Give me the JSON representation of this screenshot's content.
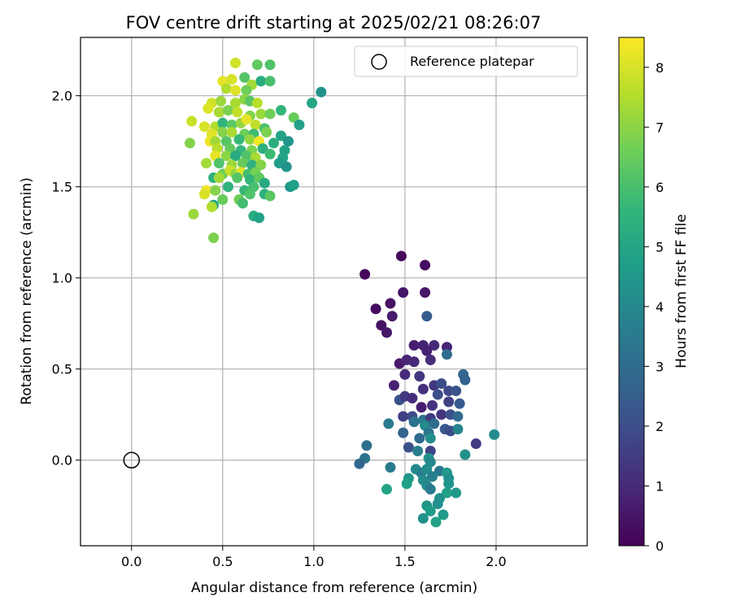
{
  "chart_data": {
    "type": "scatter",
    "title": "FOV centre drift starting at 2025/02/21 08:26:07",
    "xlabel": "Angular distance from reference (arcmin)",
    "ylabel": "Rotation from reference (arcmin)",
    "xlim": [
      -0.28,
      2.5
    ],
    "ylim": [
      -0.47,
      2.32
    ],
    "x_ticks": [
      0.0,
      0.5,
      1.0,
      1.5,
      2.0
    ],
    "y_ticks": [
      0.0,
      0.5,
      1.0,
      1.5,
      2.0
    ],
    "grid": true,
    "legend": {
      "placement": "top-right",
      "entries": [
        "Reference platepar"
      ]
    },
    "reference_point": {
      "x": 0.0,
      "y": 0.0
    },
    "colorbar": {
      "label": "Hours from first FF file",
      "range": [
        0,
        8.5
      ],
      "ticks": [
        0,
        1,
        2,
        3,
        4,
        5,
        6,
        7,
        8
      ],
      "colormap": "viridis"
    },
    "points": [
      {
        "x": 1.28,
        "y": 1.02,
        "c": 0.2
      },
      {
        "x": 1.48,
        "y": 1.12,
        "c": 0.2
      },
      {
        "x": 1.61,
        "y": 1.07,
        "c": 0.3
      },
      {
        "x": 1.34,
        "y": 0.83,
        "c": 0.3
      },
      {
        "x": 1.42,
        "y": 0.86,
        "c": 0.4
      },
      {
        "x": 1.49,
        "y": 0.92,
        "c": 0.5
      },
      {
        "x": 1.61,
        "y": 0.92,
        "c": 0.5
      },
      {
        "x": 1.37,
        "y": 0.74,
        "c": 0.4
      },
      {
        "x": 1.43,
        "y": 0.79,
        "c": 0.6
      },
      {
        "x": 1.4,
        "y": 0.7,
        "c": 0.5
      },
      {
        "x": 1.55,
        "y": 0.63,
        "c": 0.7
      },
      {
        "x": 1.6,
        "y": 0.63,
        "c": 0.8
      },
      {
        "x": 1.66,
        "y": 0.63,
        "c": 1.0
      },
      {
        "x": 1.73,
        "y": 0.62,
        "c": 0.9
      },
      {
        "x": 1.62,
        "y": 0.6,
        "c": 0.8
      },
      {
        "x": 1.47,
        "y": 0.53,
        "c": 0.6
      },
      {
        "x": 1.51,
        "y": 0.55,
        "c": 0.9
      },
      {
        "x": 1.55,
        "y": 0.54,
        "c": 1.0
      },
      {
        "x": 1.64,
        "y": 0.55,
        "c": 1.1
      },
      {
        "x": 1.5,
        "y": 0.47,
        "c": 1.0
      },
      {
        "x": 1.58,
        "y": 0.46,
        "c": 1.3
      },
      {
        "x": 1.44,
        "y": 0.41,
        "c": 0.8
      },
      {
        "x": 1.6,
        "y": 0.39,
        "c": 1.2
      },
      {
        "x": 1.66,
        "y": 0.41,
        "c": 1.4
      },
      {
        "x": 1.7,
        "y": 0.42,
        "c": 2.0
      },
      {
        "x": 1.73,
        "y": 0.58,
        "c": 3.0
      },
      {
        "x": 1.62,
        "y": 0.79,
        "c": 2.5
      },
      {
        "x": 1.47,
        "y": 0.33,
        "c": 2.2
      },
      {
        "x": 1.5,
        "y": 0.35,
        "c": 1.4
      },
      {
        "x": 1.54,
        "y": 0.34,
        "c": 1.1
      },
      {
        "x": 1.68,
        "y": 0.36,
        "c": 2.0
      },
      {
        "x": 1.74,
        "y": 0.38,
        "c": 1.8
      },
      {
        "x": 1.78,
        "y": 0.38,
        "c": 2.2
      },
      {
        "x": 1.59,
        "y": 0.29,
        "c": 0.7
      },
      {
        "x": 1.65,
        "y": 0.3,
        "c": 1.2
      },
      {
        "x": 1.74,
        "y": 0.32,
        "c": 1.6
      },
      {
        "x": 1.8,
        "y": 0.31,
        "c": 2.4
      },
      {
        "x": 1.82,
        "y": 0.47,
        "c": 2.8
      },
      {
        "x": 1.83,
        "y": 0.44,
        "c": 2.6
      },
      {
        "x": 1.49,
        "y": 0.24,
        "c": 1.6
      },
      {
        "x": 1.54,
        "y": 0.24,
        "c": 1.9
      },
      {
        "x": 1.6,
        "y": 0.22,
        "c": 3.4
      },
      {
        "x": 1.64,
        "y": 0.23,
        "c": 1.5
      },
      {
        "x": 1.7,
        "y": 0.25,
        "c": 1.3
      },
      {
        "x": 1.75,
        "y": 0.25,
        "c": 2.1
      },
      {
        "x": 1.79,
        "y": 0.24,
        "c": 2.9
      },
      {
        "x": 1.41,
        "y": 0.2,
        "c": 3.5
      },
      {
        "x": 1.55,
        "y": 0.21,
        "c": 3.2
      },
      {
        "x": 1.61,
        "y": 0.19,
        "c": 4.0
      },
      {
        "x": 1.66,
        "y": 0.2,
        "c": 3.0
      },
      {
        "x": 1.72,
        "y": 0.17,
        "c": 2.3
      },
      {
        "x": 1.75,
        "y": 0.16,
        "c": 2.0
      },
      {
        "x": 1.79,
        "y": 0.17,
        "c": 3.8
      },
      {
        "x": 1.49,
        "y": 0.15,
        "c": 2.7
      },
      {
        "x": 1.58,
        "y": 0.12,
        "c": 2.9
      },
      {
        "x": 1.63,
        "y": 0.15,
        "c": 3.3
      },
      {
        "x": 1.64,
        "y": 0.12,
        "c": 4.2
      },
      {
        "x": 1.89,
        "y": 0.09,
        "c": 1.5
      },
      {
        "x": 1.99,
        "y": 0.14,
        "c": 4.1
      },
      {
        "x": 1.52,
        "y": 0.07,
        "c": 2.1
      },
      {
        "x": 1.57,
        "y": 0.05,
        "c": 3.6
      },
      {
        "x": 1.64,
        "y": 0.05,
        "c": 1.7
      },
      {
        "x": 1.83,
        "y": 0.03,
        "c": 4.3
      },
      {
        "x": 1.29,
        "y": 0.08,
        "c": 3.1
      },
      {
        "x": 1.28,
        "y": 0.01,
        "c": 3.3
      },
      {
        "x": 1.25,
        "y": -0.02,
        "c": 2.8
      },
      {
        "x": 1.63,
        "y": 0.01,
        "c": 4.4
      },
      {
        "x": 1.64,
        "y": -0.01,
        "c": 3.9
      },
      {
        "x": 1.42,
        "y": -0.04,
        "c": 3.5
      },
      {
        "x": 1.56,
        "y": -0.05,
        "c": 4.0
      },
      {
        "x": 1.59,
        "y": -0.07,
        "c": 3.6
      },
      {
        "x": 1.62,
        "y": -0.05,
        "c": 4.1
      },
      {
        "x": 1.69,
        "y": -0.06,
        "c": 3.4
      },
      {
        "x": 1.73,
        "y": -0.07,
        "c": 4.6
      },
      {
        "x": 1.52,
        "y": -0.1,
        "c": 4.5
      },
      {
        "x": 1.6,
        "y": -0.11,
        "c": 4.1
      },
      {
        "x": 1.65,
        "y": -0.09,
        "c": 3.7
      },
      {
        "x": 1.74,
        "y": -0.1,
        "c": 4.2
      },
      {
        "x": 1.51,
        "y": -0.13,
        "c": 4.8
      },
      {
        "x": 1.62,
        "y": -0.14,
        "c": 4.0
      },
      {
        "x": 1.64,
        "y": -0.16,
        "c": 3.5
      },
      {
        "x": 1.74,
        "y": -0.13,
        "c": 4.4
      },
      {
        "x": 1.4,
        "y": -0.16,
        "c": 4.9
      },
      {
        "x": 1.73,
        "y": -0.18,
        "c": 4.8
      },
      {
        "x": 1.78,
        "y": -0.18,
        "c": 4.5
      },
      {
        "x": 1.69,
        "y": -0.21,
        "c": 4.3
      },
      {
        "x": 1.62,
        "y": -0.25,
        "c": 4.5
      },
      {
        "x": 1.68,
        "y": -0.24,
        "c": 4.2
      },
      {
        "x": 1.64,
        "y": -0.28,
        "c": 4.7
      },
      {
        "x": 1.6,
        "y": -0.32,
        "c": 4.3
      },
      {
        "x": 1.71,
        "y": -0.3,
        "c": 4.6
      },
      {
        "x": 1.67,
        "y": -0.34,
        "c": 4.9
      },
      {
        "x": 0.57,
        "y": 2.18,
        "c": 7.9
      },
      {
        "x": 0.69,
        "y": 2.17,
        "c": 6.4
      },
      {
        "x": 0.76,
        "y": 2.17,
        "c": 6.1
      },
      {
        "x": 0.5,
        "y": 2.08,
        "c": 8.2
      },
      {
        "x": 0.55,
        "y": 2.09,
        "c": 8.0
      },
      {
        "x": 0.62,
        "y": 2.1,
        "c": 6.2
      },
      {
        "x": 0.66,
        "y": 2.06,
        "c": 7.3
      },
      {
        "x": 0.71,
        "y": 2.08,
        "c": 5.3
      },
      {
        "x": 0.76,
        "y": 2.08,
        "c": 6.0
      },
      {
        "x": 1.04,
        "y": 2.02,
        "c": 4.3
      },
      {
        "x": 0.99,
        "y": 1.96,
        "c": 5.0
      },
      {
        "x": 0.52,
        "y": 2.04,
        "c": 7.5
      },
      {
        "x": 0.57,
        "y": 2.03,
        "c": 8.1
      },
      {
        "x": 0.63,
        "y": 2.03,
        "c": 6.6
      },
      {
        "x": 0.44,
        "y": 1.96,
        "c": 7.9
      },
      {
        "x": 0.49,
        "y": 1.97,
        "c": 7.2
      },
      {
        "x": 0.57,
        "y": 1.96,
        "c": 7.4
      },
      {
        "x": 0.62,
        "y": 1.98,
        "c": 7.0
      },
      {
        "x": 0.65,
        "y": 1.97,
        "c": 6.3
      },
      {
        "x": 0.69,
        "y": 1.96,
        "c": 7.6
      },
      {
        "x": 0.42,
        "y": 1.93,
        "c": 8.1
      },
      {
        "x": 0.48,
        "y": 1.91,
        "c": 7.4
      },
      {
        "x": 0.53,
        "y": 1.92,
        "c": 6.8
      },
      {
        "x": 0.58,
        "y": 1.91,
        "c": 7.7
      },
      {
        "x": 0.65,
        "y": 1.89,
        "c": 6.9
      },
      {
        "x": 0.71,
        "y": 1.9,
        "c": 7.2
      },
      {
        "x": 0.76,
        "y": 1.9,
        "c": 6.6
      },
      {
        "x": 0.82,
        "y": 1.92,
        "c": 5.6
      },
      {
        "x": 0.89,
        "y": 1.88,
        "c": 6.5
      },
      {
        "x": 0.92,
        "y": 1.84,
        "c": 4.8
      },
      {
        "x": 0.33,
        "y": 1.86,
        "c": 7.8
      },
      {
        "x": 0.4,
        "y": 1.83,
        "c": 8.0
      },
      {
        "x": 0.46,
        "y": 1.83,
        "c": 7.5
      },
      {
        "x": 0.5,
        "y": 1.85,
        "c": 5.5
      },
      {
        "x": 0.55,
        "y": 1.84,
        "c": 6.3
      },
      {
        "x": 0.6,
        "y": 1.85,
        "c": 7.1
      },
      {
        "x": 0.63,
        "y": 1.87,
        "c": 8.2
      },
      {
        "x": 0.68,
        "y": 1.84,
        "c": 7.7
      },
      {
        "x": 0.73,
        "y": 1.82,
        "c": 6.0
      },
      {
        "x": 0.44,
        "y": 1.79,
        "c": 8.1
      },
      {
        "x": 0.5,
        "y": 1.8,
        "c": 6.9
      },
      {
        "x": 0.55,
        "y": 1.8,
        "c": 7.4
      },
      {
        "x": 0.62,
        "y": 1.79,
        "c": 6.6
      },
      {
        "x": 0.67,
        "y": 1.79,
        "c": 5.8
      },
      {
        "x": 0.74,
        "y": 1.8,
        "c": 6.8
      },
      {
        "x": 0.82,
        "y": 1.78,
        "c": 4.9
      },
      {
        "x": 0.86,
        "y": 1.75,
        "c": 4.5
      },
      {
        "x": 0.43,
        "y": 1.75,
        "c": 8.3
      },
      {
        "x": 0.46,
        "y": 1.75,
        "c": 7.3
      },
      {
        "x": 0.52,
        "y": 1.75,
        "c": 6.2
      },
      {
        "x": 0.59,
        "y": 1.76,
        "c": 5.7
      },
      {
        "x": 0.65,
        "y": 1.76,
        "c": 7.1
      },
      {
        "x": 0.7,
        "y": 1.75,
        "c": 8.4
      },
      {
        "x": 0.78,
        "y": 1.74,
        "c": 5.3
      },
      {
        "x": 0.32,
        "y": 1.74,
        "c": 6.9
      },
      {
        "x": 0.47,
        "y": 1.71,
        "c": 7.6
      },
      {
        "x": 0.54,
        "y": 1.71,
        "c": 6.4
      },
      {
        "x": 0.6,
        "y": 1.7,
        "c": 5.6
      },
      {
        "x": 0.66,
        "y": 1.7,
        "c": 6.8
      },
      {
        "x": 0.72,
        "y": 1.71,
        "c": 5.4
      },
      {
        "x": 0.84,
        "y": 1.7,
        "c": 4.9
      },
      {
        "x": 0.46,
        "y": 1.67,
        "c": 8.2
      },
      {
        "x": 0.52,
        "y": 1.67,
        "c": 7.0
      },
      {
        "x": 0.57,
        "y": 1.67,
        "c": 5.2
      },
      {
        "x": 0.63,
        "y": 1.67,
        "c": 6.1
      },
      {
        "x": 0.68,
        "y": 1.66,
        "c": 7.4
      },
      {
        "x": 0.76,
        "y": 1.68,
        "c": 5.8
      },
      {
        "x": 0.83,
        "y": 1.66,
        "c": 5.0
      },
      {
        "x": 0.41,
        "y": 1.63,
        "c": 7.3
      },
      {
        "x": 0.48,
        "y": 1.63,
        "c": 6.1
      },
      {
        "x": 0.55,
        "y": 1.62,
        "c": 7.2
      },
      {
        "x": 0.61,
        "y": 1.63,
        "c": 6.5
      },
      {
        "x": 0.66,
        "y": 1.62,
        "c": 5.4
      },
      {
        "x": 0.71,
        "y": 1.62,
        "c": 6.9
      },
      {
        "x": 0.81,
        "y": 1.63,
        "c": 4.7
      },
      {
        "x": 0.85,
        "y": 1.61,
        "c": 4.4
      },
      {
        "x": 0.45,
        "y": 1.55,
        "c": 5.4
      },
      {
        "x": 0.5,
        "y": 1.57,
        "c": 6.6
      },
      {
        "x": 0.54,
        "y": 1.59,
        "c": 7.8
      },
      {
        "x": 0.57,
        "y": 1.57,
        "c": 7.1
      },
      {
        "x": 0.6,
        "y": 1.58,
        "c": 8.1
      },
      {
        "x": 0.64,
        "y": 1.57,
        "c": 5.9
      },
      {
        "x": 0.68,
        "y": 1.58,
        "c": 6.7
      },
      {
        "x": 0.48,
        "y": 1.55,
        "c": 7.3
      },
      {
        "x": 0.58,
        "y": 1.55,
        "c": 6.2
      },
      {
        "x": 0.65,
        "y": 1.54,
        "c": 5.6
      },
      {
        "x": 0.7,
        "y": 1.55,
        "c": 6.4
      },
      {
        "x": 0.73,
        "y": 1.52,
        "c": 5.1
      },
      {
        "x": 0.67,
        "y": 1.5,
        "c": 6.0
      },
      {
        "x": 0.87,
        "y": 1.5,
        "c": 4.5
      },
      {
        "x": 0.89,
        "y": 1.51,
        "c": 4.8
      },
      {
        "x": 0.41,
        "y": 1.48,
        "c": 8.3
      },
      {
        "x": 0.4,
        "y": 1.46,
        "c": 8.0
      },
      {
        "x": 0.46,
        "y": 1.48,
        "c": 6.9
      },
      {
        "x": 0.53,
        "y": 1.5,
        "c": 5.5
      },
      {
        "x": 0.62,
        "y": 1.48,
        "c": 5.7
      },
      {
        "x": 0.65,
        "y": 1.46,
        "c": 6.1
      },
      {
        "x": 0.73,
        "y": 1.46,
        "c": 5.4
      },
      {
        "x": 0.76,
        "y": 1.45,
        "c": 6.3
      },
      {
        "x": 0.5,
        "y": 1.43,
        "c": 6.5
      },
      {
        "x": 0.59,
        "y": 1.43,
        "c": 6.6
      },
      {
        "x": 0.61,
        "y": 1.41,
        "c": 5.9
      },
      {
        "x": 0.45,
        "y": 1.4,
        "c": 5.0
      },
      {
        "x": 0.44,
        "y": 1.39,
        "c": 7.5
      },
      {
        "x": 0.34,
        "y": 1.35,
        "c": 7.2
      },
      {
        "x": 0.67,
        "y": 1.34,
        "c": 5.2
      },
      {
        "x": 0.7,
        "y": 1.33,
        "c": 4.9
      },
      {
        "x": 0.45,
        "y": 1.22,
        "c": 6.8
      }
    ]
  }
}
